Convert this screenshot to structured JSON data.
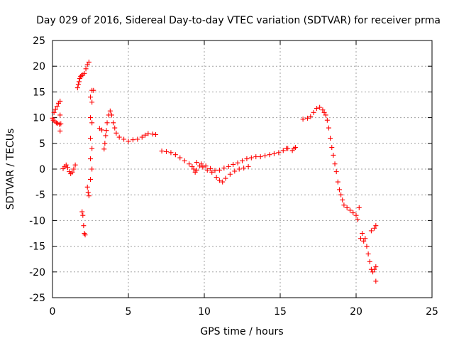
{
  "chart_data": {
    "type": "scatter",
    "title": "Day 029 of 2016, Sidereal Day-to-day VTEC variation (SDTVAR) for receiver prma",
    "xlabel": "GPS time / hours",
    "ylabel": "SDTVAR / TECUs",
    "xlim": [
      0,
      25
    ],
    "ylim": [
      -25,
      25
    ],
    "xticks": [
      0,
      5,
      10,
      15,
      20,
      25
    ],
    "yticks": [
      -25,
      -20,
      -15,
      -10,
      -5,
      0,
      5,
      10,
      15,
      20,
      25
    ],
    "grid": true,
    "marker": "plus",
    "color": "#ff0000",
    "series": [
      {
        "points": [
          [
            0.0,
            9.9
          ],
          [
            0.05,
            9.5
          ],
          [
            0.1,
            11.0
          ],
          [
            0.15,
            9.3
          ],
          [
            0.2,
            11.6
          ],
          [
            0.25,
            9.0
          ],
          [
            0.3,
            12.2
          ],
          [
            0.35,
            8.9
          ],
          [
            0.4,
            12.8
          ],
          [
            0.45,
            8.7
          ],
          [
            0.5,
            13.2
          ],
          [
            0.55,
            8.8
          ],
          [
            0.5,
            7.4
          ],
          [
            0.5,
            10.5
          ],
          [
            0.7,
            0.1
          ],
          [
            0.8,
            0.5
          ],
          [
            0.9,
            0.8
          ],
          [
            1.0,
            0.3
          ],
          [
            1.1,
            -0.5
          ],
          [
            1.2,
            -0.9
          ],
          [
            1.3,
            -0.6
          ],
          [
            1.4,
            0.0
          ],
          [
            1.5,
            0.8
          ],
          [
            1.65,
            15.8
          ],
          [
            1.7,
            16.5
          ],
          [
            1.75,
            17.0
          ],
          [
            1.8,
            17.6
          ],
          [
            1.85,
            18.0
          ],
          [
            1.9,
            18.2
          ],
          [
            2.0,
            18.3
          ],
          [
            2.1,
            18.6
          ],
          [
            2.2,
            19.5
          ],
          [
            2.3,
            20.3
          ],
          [
            2.4,
            20.8
          ],
          [
            1.95,
            -8.3
          ],
          [
            2.0,
            -9.0
          ],
          [
            2.05,
            -11.0
          ],
          [
            2.1,
            -12.5
          ],
          [
            2.15,
            -12.8
          ],
          [
            2.3,
            -3.5
          ],
          [
            2.35,
            -4.5
          ],
          [
            2.4,
            -5.2
          ],
          [
            2.5,
            14.0
          ],
          [
            2.5,
            10.0
          ],
          [
            2.5,
            6.0
          ],
          [
            2.5,
            2.0
          ],
          [
            2.5,
            -2.0
          ],
          [
            2.6,
            13.0
          ],
          [
            2.6,
            9.0
          ],
          [
            2.6,
            4.0
          ],
          [
            2.6,
            0.0
          ],
          [
            2.6,
            15.3
          ],
          [
            2.7,
            15.3
          ],
          [
            3.1,
            7.9
          ],
          [
            3.25,
            7.6
          ],
          [
            3.4,
            3.9
          ],
          [
            3.45,
            5.0
          ],
          [
            3.5,
            6.5
          ],
          [
            3.55,
            7.5
          ],
          [
            3.6,
            9.0
          ],
          [
            3.7,
            10.5
          ],
          [
            3.8,
            11.3
          ],
          [
            3.9,
            10.5
          ],
          [
            4.0,
            9.0
          ],
          [
            4.1,
            8.0
          ],
          [
            4.2,
            7.0
          ],
          [
            4.4,
            6.2
          ],
          [
            4.7,
            5.8
          ],
          [
            5.0,
            5.4
          ],
          [
            5.3,
            5.7
          ],
          [
            5.6,
            5.8
          ],
          [
            5.9,
            6.2
          ],
          [
            6.1,
            6.6
          ],
          [
            6.3,
            6.9
          ],
          [
            6.6,
            6.8
          ],
          [
            6.8,
            6.7
          ],
          [
            7.2,
            3.5
          ],
          [
            7.5,
            3.4
          ],
          [
            7.8,
            3.2
          ],
          [
            8.1,
            2.8
          ],
          [
            8.4,
            2.2
          ],
          [
            8.7,
            1.6
          ],
          [
            9.0,
            1.0
          ],
          [
            9.2,
            0.5
          ],
          [
            9.3,
            0.0
          ],
          [
            9.4,
            -0.6
          ],
          [
            9.5,
            -0.2
          ],
          [
            9.7,
            0.6
          ],
          [
            9.9,
            0.4
          ],
          [
            10.2,
            -0.2
          ],
          [
            10.5,
            -0.6
          ],
          [
            10.8,
            -1.6
          ],
          [
            11.0,
            -2.2
          ],
          [
            11.2,
            -2.5
          ],
          [
            11.4,
            -1.8
          ],
          [
            11.7,
            -1.0
          ],
          [
            12.0,
            -0.4
          ],
          [
            12.3,
            0.0
          ],
          [
            12.6,
            0.2
          ],
          [
            12.9,
            0.5
          ],
          [
            9.5,
            1.3
          ],
          [
            9.8,
            1.0
          ],
          [
            10.1,
            0.6
          ],
          [
            10.4,
            0.1
          ],
          [
            10.7,
            -0.3
          ],
          [
            11.0,
            -0.2
          ],
          [
            11.3,
            0.2
          ],
          [
            11.6,
            0.5
          ],
          [
            11.9,
            0.9
          ],
          [
            12.2,
            1.2
          ],
          [
            12.5,
            1.6
          ],
          [
            12.8,
            2.0
          ],
          [
            13.1,
            2.2
          ],
          [
            13.4,
            2.4
          ],
          [
            13.7,
            2.4
          ],
          [
            14.0,
            2.6
          ],
          [
            14.3,
            2.8
          ],
          [
            14.6,
            3.0
          ],
          [
            14.9,
            3.2
          ],
          [
            15.2,
            3.6
          ],
          [
            15.4,
            4.0
          ],
          [
            15.5,
            4.0
          ],
          [
            15.8,
            3.6
          ],
          [
            15.9,
            4.0
          ],
          [
            16.0,
            4.2
          ],
          [
            16.5,
            9.7
          ],
          [
            16.8,
            9.9
          ],
          [
            17.0,
            10.2
          ],
          [
            17.2,
            11.0
          ],
          [
            17.4,
            11.8
          ],
          [
            17.6,
            12.0
          ],
          [
            17.8,
            11.5
          ],
          [
            17.9,
            11.0
          ],
          [
            18.0,
            10.5
          ],
          [
            18.1,
            9.5
          ],
          [
            18.2,
            8.0
          ],
          [
            18.3,
            6.0
          ],
          [
            18.4,
            4.2
          ],
          [
            18.5,
            2.7
          ],
          [
            18.6,
            1.0
          ],
          [
            18.7,
            -0.5
          ],
          [
            18.8,
            -2.5
          ],
          [
            18.9,
            -4.0
          ],
          [
            19.0,
            -5.0
          ],
          [
            19.1,
            -6.0
          ],
          [
            19.2,
            -7.0
          ],
          [
            19.4,
            -7.5
          ],
          [
            19.6,
            -8.0
          ],
          [
            19.8,
            -8.5
          ],
          [
            20.0,
            -9.0
          ],
          [
            20.1,
            -9.8
          ],
          [
            20.2,
            -7.5
          ],
          [
            20.3,
            -13.5
          ],
          [
            20.4,
            -12.5
          ],
          [
            20.5,
            -14.0
          ],
          [
            20.6,
            -13.5
          ],
          [
            20.7,
            -15.0
          ],
          [
            20.8,
            -16.5
          ],
          [
            20.9,
            -18.0
          ],
          [
            21.0,
            -19.5
          ],
          [
            21.1,
            -20.0
          ],
          [
            21.2,
            -19.5
          ],
          [
            21.3,
            -19.0
          ],
          [
            21.0,
            -12.0
          ],
          [
            21.2,
            -11.5
          ],
          [
            21.3,
            -11.0
          ],
          [
            21.3,
            -21.8
          ]
        ]
      }
    ]
  }
}
